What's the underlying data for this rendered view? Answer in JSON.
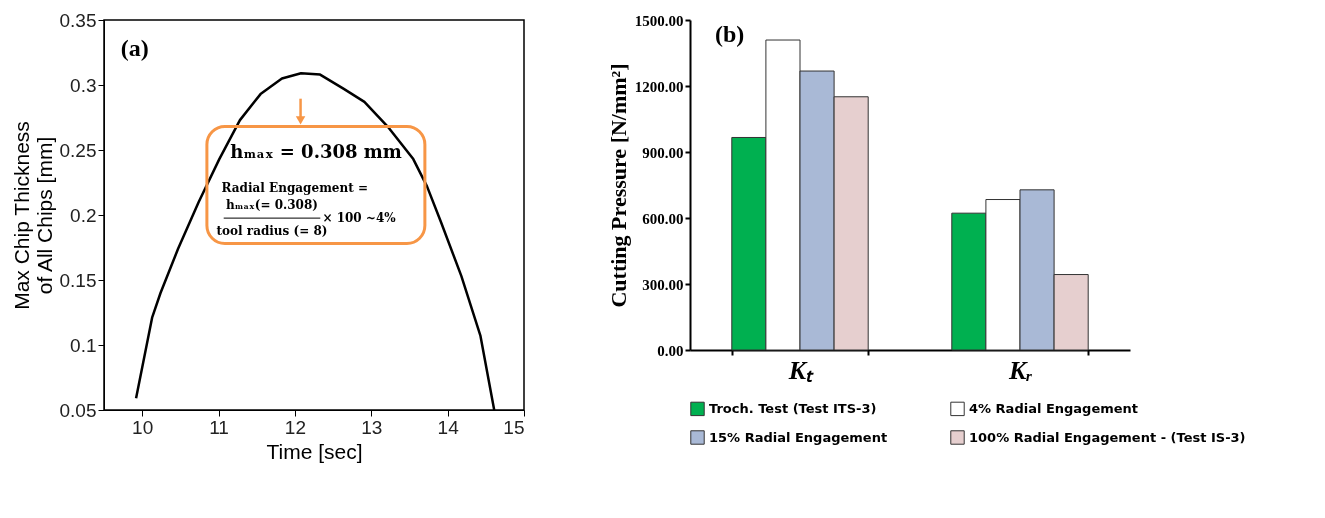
{
  "chart_data": [
    {
      "type": "line",
      "xlabel": "Time [sec]",
      "ylabel": "Max Chip Thickness\nof All Chips [mm]",
      "x": [
        9.92,
        10.13,
        10.24,
        10.47,
        10.74,
        11.01,
        11.28,
        11.55,
        11.83,
        12.08,
        12.33,
        12.64,
        12.91,
        13.23,
        13.55,
        13.73,
        13.91,
        14.18,
        14.43,
        14.61
      ],
      "series": [
        {
          "color": "#000000",
          "values": [
            0.059,
            0.121,
            0.14,
            0.174,
            0.21,
            0.243,
            0.273,
            0.293,
            0.305,
            0.309,
            0.308,
            0.297,
            0.287,
            0.267,
            0.243,
            0.222,
            0.195,
            0.153,
            0.107,
            0.05
          ]
        }
      ],
      "xlim": [
        9.5,
        15
      ],
      "xticks": [
        10,
        11,
        12,
        13,
        14,
        15
      ],
      "ylim": [
        0.05,
        0.35
      ],
      "yticks": [
        0.05,
        0.1,
        0.15,
        0.2,
        0.25,
        0.3,
        0.35
      ],
      "annotations": [
        "(a)",
        "hₘₐₓ = 0.308 mm",
        "Radial Engagement =",
        "hₘₐₓ(= 0.308)",
        "tool radius (= 8)",
        "× 100 ~4%"
      ],
      "marker": "none",
      "line_style": "solid",
      "legend": false
    },
    {
      "type": "bar",
      "ylabel": "Cutting Pressure [N/mm²]",
      "categories": [
        "Kₜ",
        "Kᵣ"
      ],
      "series": [
        {
          "name": "Troch. Test (Test ITS-3)",
          "color": "#00b050",
          "values": [
            966,
            622
          ]
        },
        {
          "name": "4% Radial Engagement",
          "color": "#ffffff",
          "values": [
            1409,
            684
          ]
        },
        {
          "name": "15% Radial Engagement",
          "color": "#a9b9d6",
          "values": [
            1268,
            728
          ]
        },
        {
          "name": "100% Radial Engagement - (Test IS-3)",
          "color": "#e6cfcf",
          "values": [
            1151,
            343
          ]
        }
      ],
      "ylim": [
        0,
        1500
      ],
      "yticks": [
        {
          "value": 0,
          "label": "0.00"
        },
        {
          "value": 300,
          "label": "300.00"
        },
        {
          "value": 600,
          "label": "600.00"
        },
        {
          "value": 900,
          "label": "900.00"
        },
        {
          "value": 1200,
          "label": "1200.00"
        },
        {
          "value": 1500,
          "label": "1500.00"
        }
      ],
      "annotations": [
        "(b)"
      ],
      "legend": "bottom"
    }
  ]
}
